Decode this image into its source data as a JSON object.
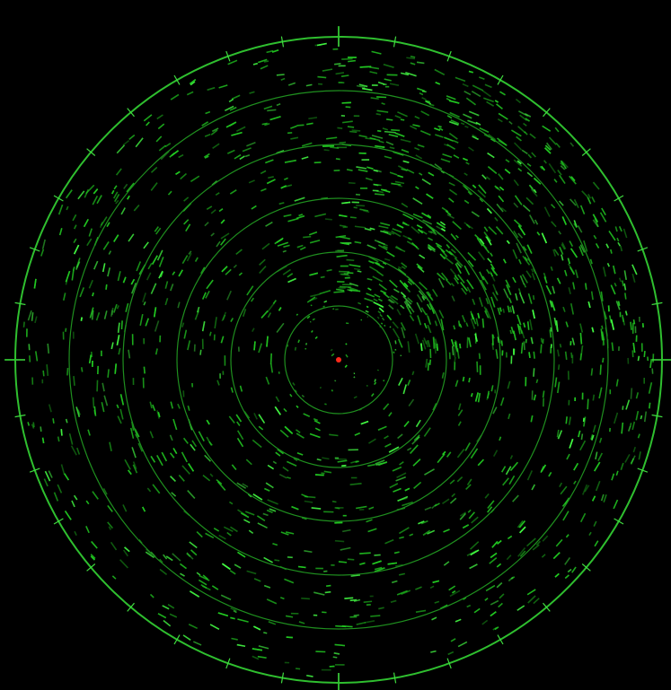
{
  "radar": {
    "background": "#000000",
    "ring_color": "#1f8f1f",
    "outer_ring_color": "#2fbf2f",
    "tick_color": "#3fdc3f",
    "crosshair_color": "#2fbf2f",
    "echo_color": "#22cc22",
    "echo_bright_color": "#44ff44",
    "center_marker_color": "#ff2a1a",
    "range_ring_count": 6,
    "bearing_ticks_major_every_deg": 90,
    "bearing_ticks_minor_every_deg": 10,
    "center_marker": "own-position-marker"
  }
}
